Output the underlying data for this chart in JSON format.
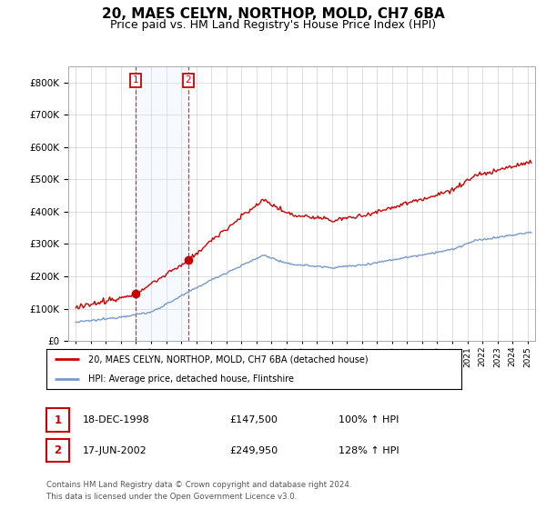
{
  "title": "20, MAES CELYN, NORTHOP, MOLD, CH7 6BA",
  "subtitle": "Price paid vs. HM Land Registry's House Price Index (HPI)",
  "title_fontsize": 11,
  "subtitle_fontsize": 9,
  "background_color": "#ffffff",
  "plot_background_color": "#ffffff",
  "grid_color": "#cccccc",
  "purchase1": {
    "date_num": 1998.96,
    "price": 147500,
    "label": "1"
  },
  "purchase2": {
    "date_num": 2002.46,
    "price": 249950,
    "label": "2"
  },
  "legend_line1": "20, MAES CELYN, NORTHOP, MOLD, CH7 6BA (detached house)",
  "legend_line2": "HPI: Average price, detached house, Flintshire",
  "table": [
    {
      "num": "1",
      "date": "18-DEC-1998",
      "price": "£147,500",
      "pct": "100% ↑ HPI"
    },
    {
      "num": "2",
      "date": "17-JUN-2002",
      "price": "£249,950",
      "pct": "128% ↑ HPI"
    }
  ],
  "footer": "Contains HM Land Registry data © Crown copyright and database right 2024.\nThis data is licensed under the Open Government Licence v3.0.",
  "hpi_line_color": "#7799cc",
  "price_line_color": "#cc0000",
  "marker_color": "#cc0000",
  "annotation_box_color": "#cc0000",
  "shading_color": "#ddeeff",
  "ylim": [
    0,
    850000
  ],
  "xlim_start": 1994.5,
  "xlim_end": 2025.5
}
